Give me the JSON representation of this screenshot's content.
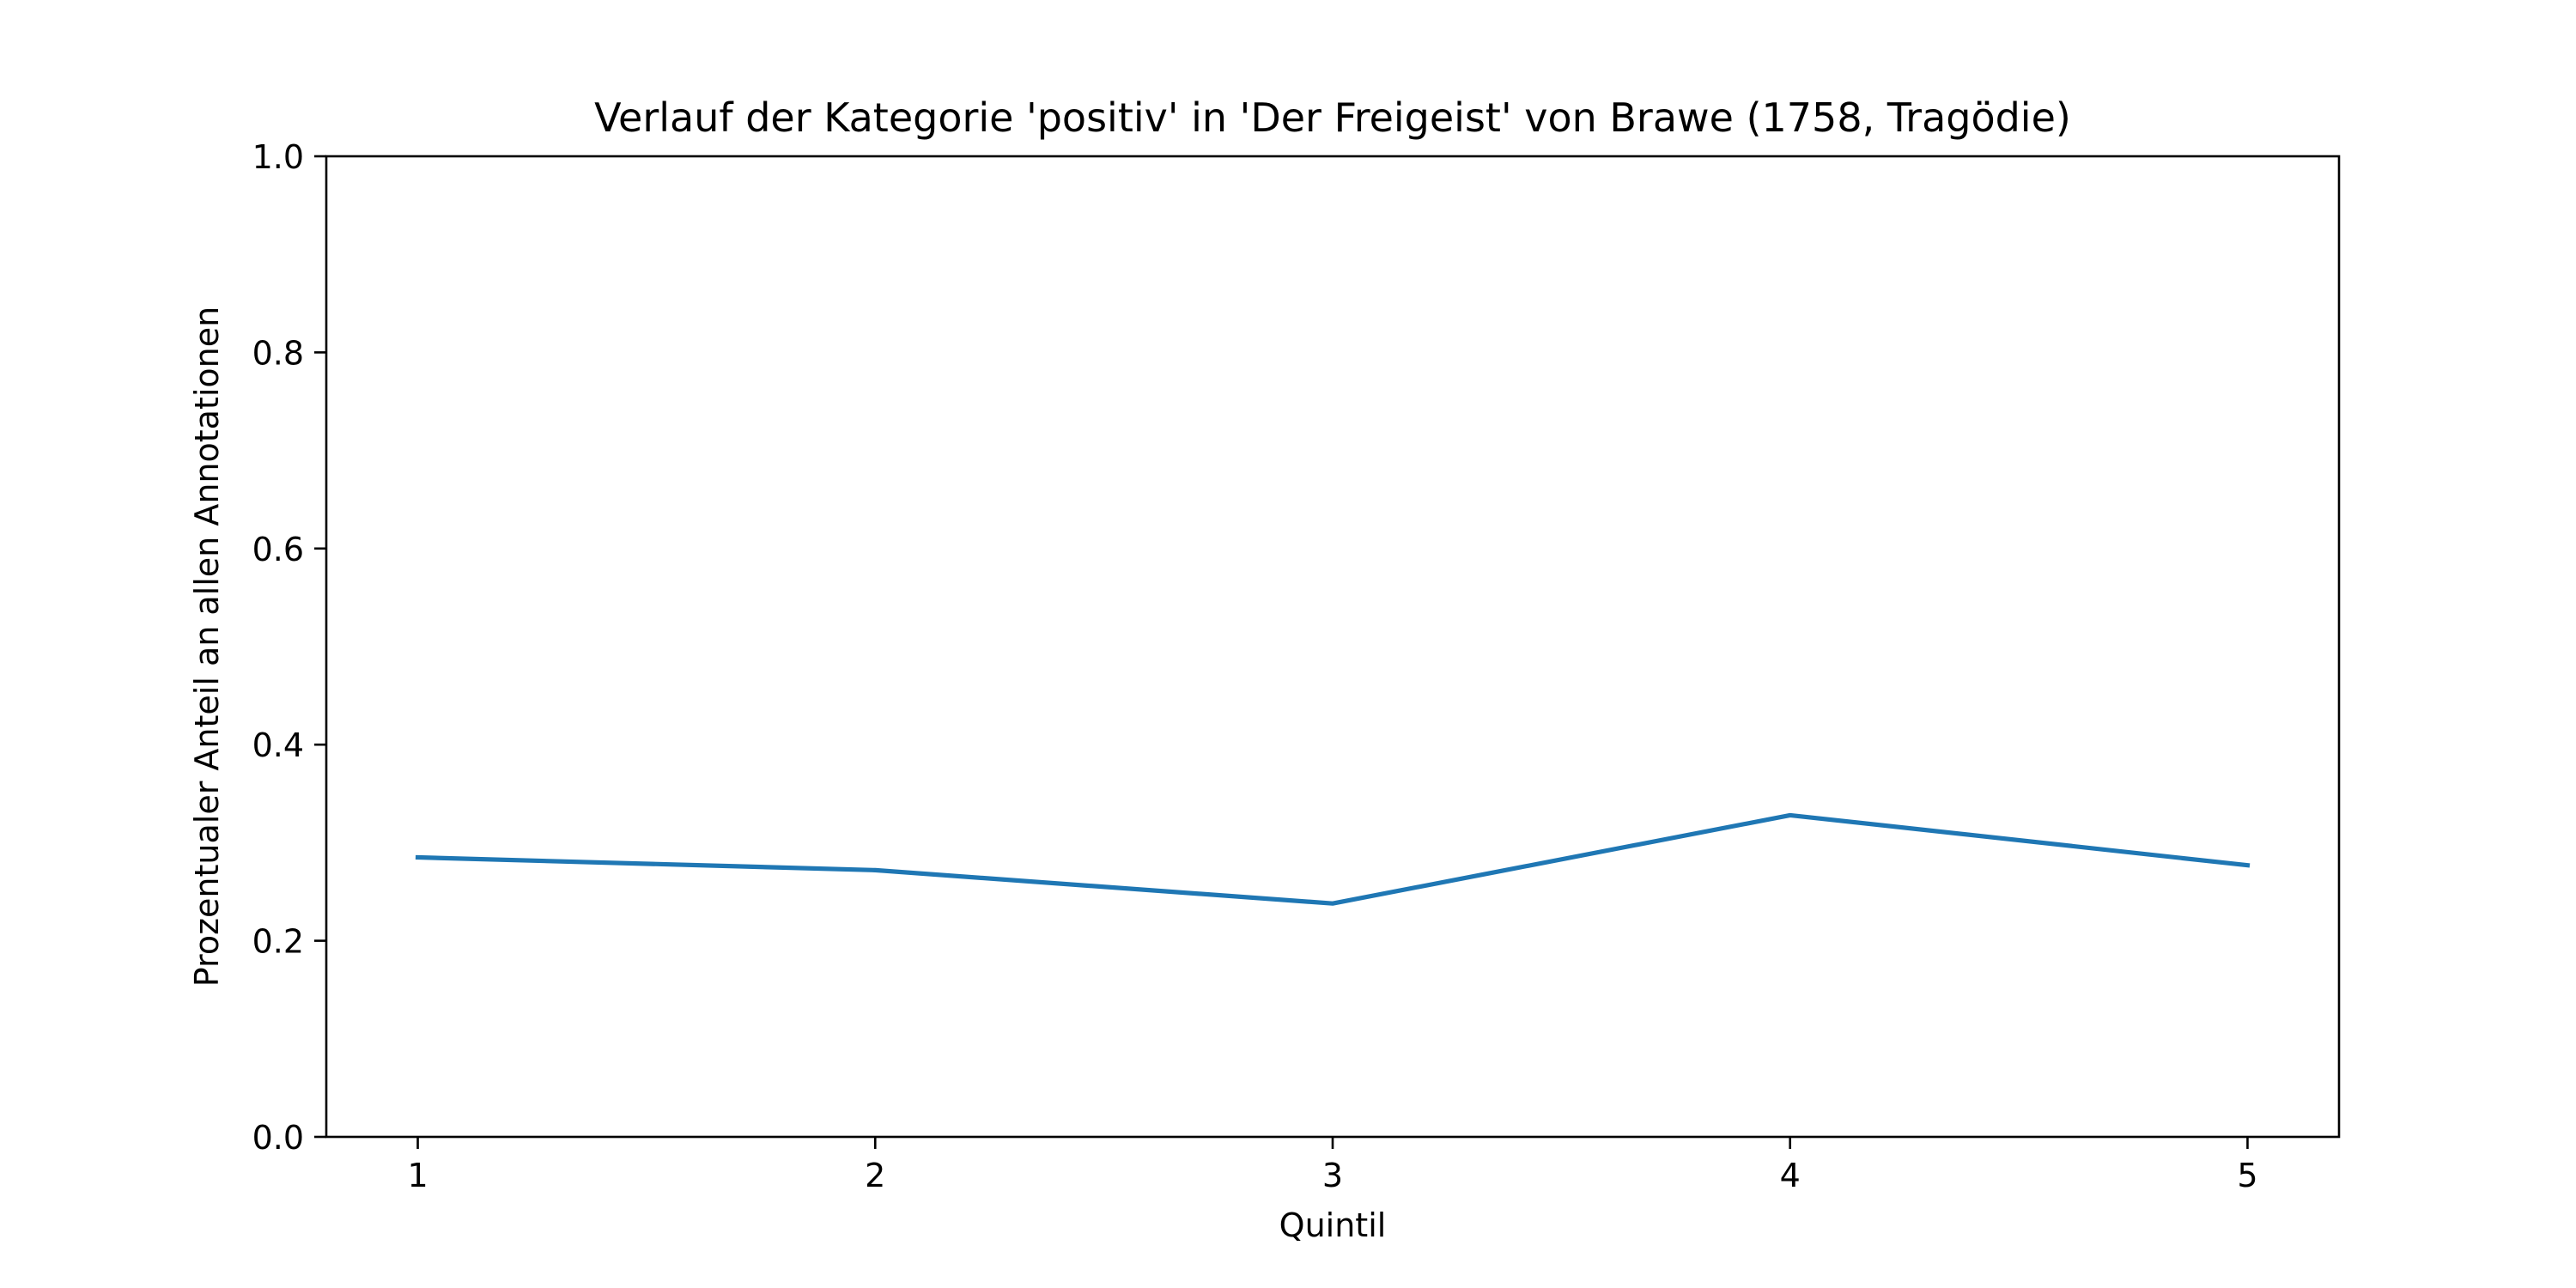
{
  "chart_data": {
    "type": "line",
    "title": "Verlauf der Kategorie 'positiv' in 'Der Freigeist' von Brawe (1758, Tragödie)",
    "xlabel": "Quintil",
    "ylabel": "Prozentualer Anteil an allen Annotationen",
    "x": [
      1,
      2,
      3,
      4,
      5
    ],
    "x_tick_labels": [
      "1",
      "2",
      "3",
      "4",
      "5"
    ],
    "y_tick_labels": [
      "0.0",
      "0.2",
      "0.4",
      "0.6",
      "0.8",
      "1.0"
    ],
    "y_ticks": [
      0.0,
      0.2,
      0.4,
      0.6,
      0.8,
      1.0
    ],
    "xlim": [
      0.8,
      5.2
    ],
    "ylim": [
      0.0,
      1.0
    ],
    "grid": false,
    "series": [
      {
        "values": [
          0.285,
          0.272,
          0.238,
          0.328,
          0.277
        ],
        "color": "#1f77b4"
      }
    ]
  }
}
